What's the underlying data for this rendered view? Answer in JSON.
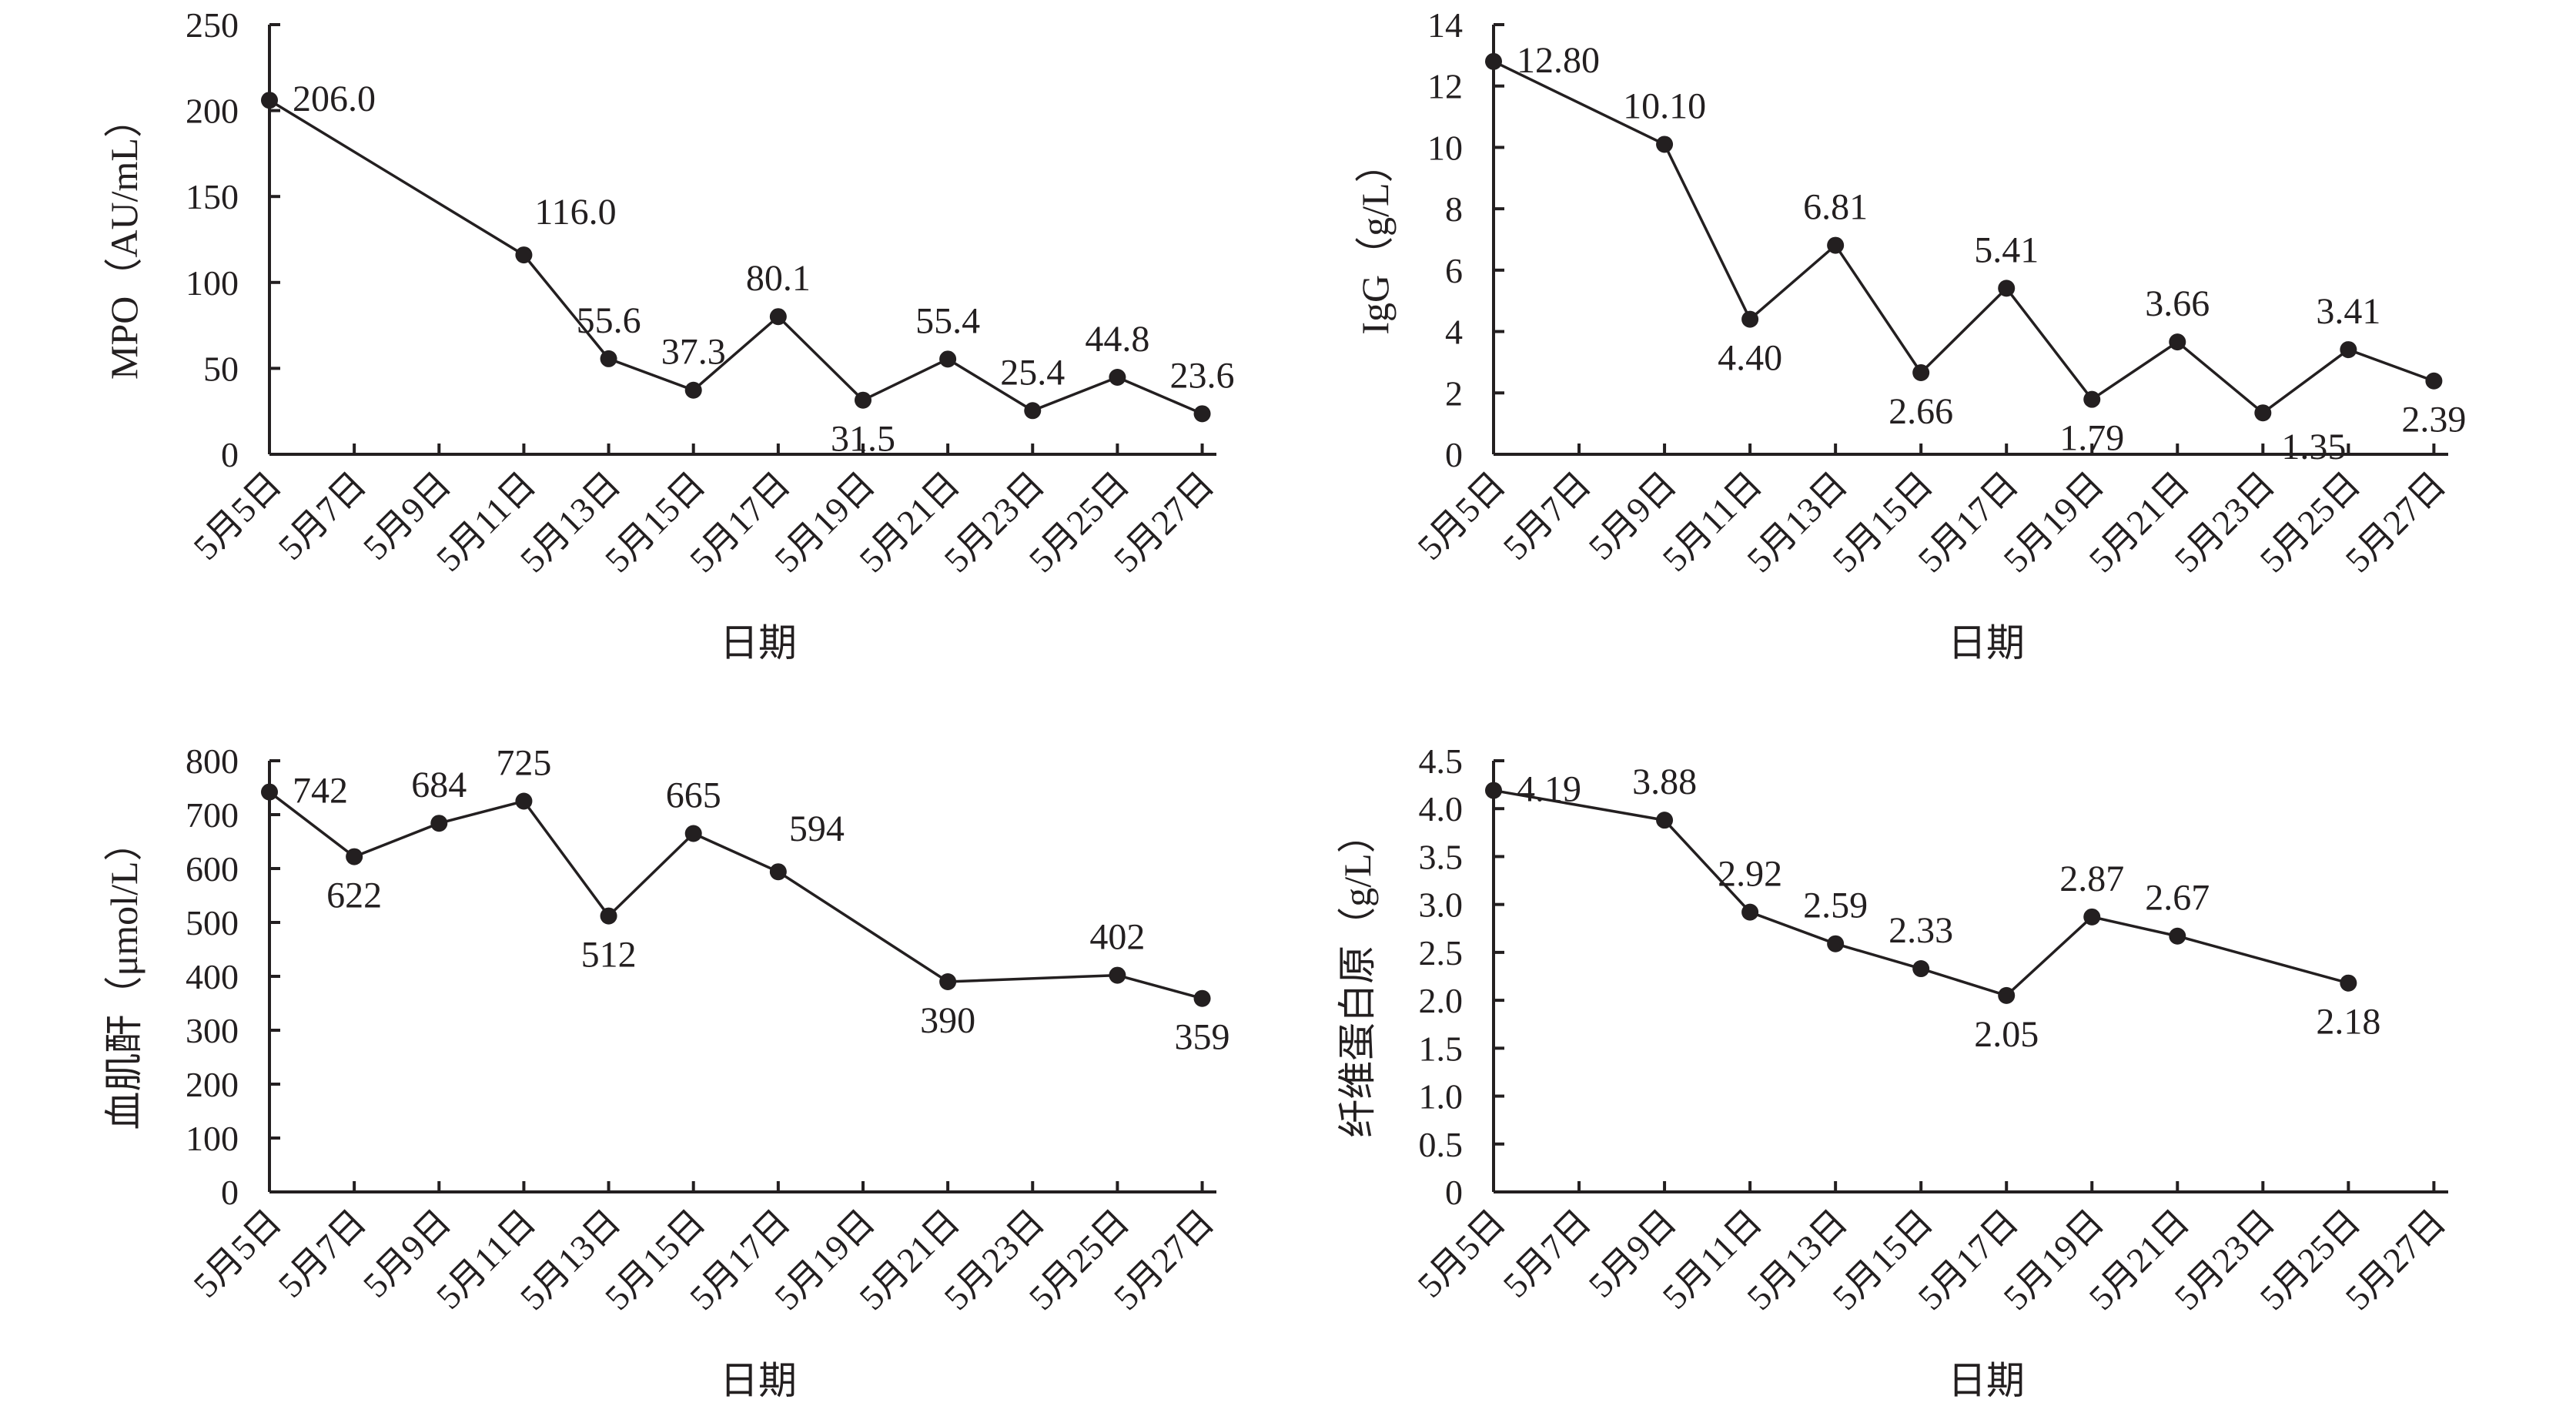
{
  "chart_data": [
    {
      "type": "line",
      "xlabel": "日期",
      "ylabel": "MPO（AU/mL）",
      "ylim": [
        0,
        250
      ],
      "yticks": [
        "0",
        "50",
        "100",
        "150",
        "200",
        "250"
      ],
      "categories": [
        "5月5日",
        "5月7日",
        "5月9日",
        "5月11日",
        "5月13日",
        "5月15日",
        "5月17日",
        "5月19日",
        "5月21日",
        "5月23日",
        "5月25日",
        "5月27日"
      ],
      "values": [
        206.0,
        null,
        null,
        116.0,
        55.6,
        37.3,
        80.1,
        31.5,
        55.4,
        25.4,
        44.8,
        23.6
      ],
      "labels": [
        "206.0",
        "",
        "",
        "116.0",
        "55.6",
        "37.3",
        "80.1",
        "31.5",
        "55.4",
        "25.4",
        "44.8",
        "23.6"
      ],
      "label_pos": [
        "right",
        "",
        "",
        "above-right",
        "above",
        "above",
        "above",
        "below",
        "above",
        "above",
        "above",
        "above"
      ]
    },
    {
      "type": "line",
      "xlabel": "日期",
      "ylabel": "IgG（g/L）",
      "ylim": [
        0,
        14
      ],
      "yticks": [
        "0",
        "2",
        "4",
        "6",
        "8",
        "10",
        "12",
        "14"
      ],
      "categories": [
        "5月5日",
        "5月7日",
        "5月9日",
        "5月11日",
        "5月13日",
        "5月15日",
        "5月17日",
        "5月19日",
        "5月21日",
        "5月23日",
        "5月25日",
        "5月27日"
      ],
      "values": [
        12.8,
        null,
        10.1,
        4.4,
        6.81,
        2.66,
        5.41,
        1.79,
        3.66,
        1.35,
        3.41,
        2.39
      ],
      "labels": [
        "12.80",
        "",
        "10.10",
        "4.40",
        "6.81",
        "2.66",
        "5.41",
        "1.79",
        "3.66",
        "1.35",
        "3.41",
        "2.39"
      ],
      "label_pos": [
        "right",
        "",
        "above",
        "below",
        "above",
        "below",
        "above",
        "below",
        "above",
        "below-right",
        "above",
        "below"
      ]
    },
    {
      "type": "line",
      "xlabel": "日期",
      "ylabel": "血肌酐（μmol/L）",
      "ylim": [
        0,
        800
      ],
      "yticks": [
        "0",
        "100",
        "200",
        "300",
        "400",
        "500",
        "600",
        "700",
        "800"
      ],
      "categories": [
        "5月5日",
        "5月7日",
        "5月9日",
        "5月11日",
        "5月13日",
        "5月15日",
        "5月17日",
        "5月19日",
        "5月21日",
        "5月23日",
        "5月25日",
        "5月27日"
      ],
      "values": [
        742,
        622,
        684,
        725,
        512,
        665,
        594,
        null,
        390,
        null,
        402,
        359
      ],
      "labels": [
        "742",
        "622",
        "684",
        "725",
        "512",
        "665",
        "594",
        "",
        "390",
        "",
        "402",
        "359"
      ],
      "label_pos": [
        "right",
        "below",
        "above",
        "above",
        "below",
        "above",
        "above-right",
        "",
        "below",
        "",
        "above",
        "below"
      ]
    },
    {
      "type": "line",
      "xlabel": "日期",
      "ylabel": "纤维蛋白原（g/L）",
      "ylim": [
        0,
        4.5
      ],
      "yticks": [
        "0",
        "0.5",
        "1.0",
        "1.5",
        "2.0",
        "2.5",
        "3.0",
        "3.5",
        "4.0",
        "4.5"
      ],
      "categories": [
        "5月5日",
        "5月7日",
        "5月9日",
        "5月11日",
        "5月13日",
        "5月15日",
        "5月17日",
        "5月19日",
        "5月21日",
        "5月23日",
        "5月25日",
        "5月27日"
      ],
      "values": [
        4.19,
        null,
        3.88,
        2.92,
        2.59,
        2.33,
        2.05,
        2.87,
        2.67,
        null,
        2.18,
        null
      ],
      "labels": [
        "4.19",
        "",
        "3.88",
        "2.92",
        "2.59",
        "2.33",
        "2.05",
        "2.87",
        "2.67",
        "",
        "2.18",
        ""
      ],
      "label_pos": [
        "right",
        "",
        "above",
        "above",
        "above",
        "above",
        "below",
        "above",
        "above",
        "",
        "below",
        ""
      ]
    }
  ]
}
